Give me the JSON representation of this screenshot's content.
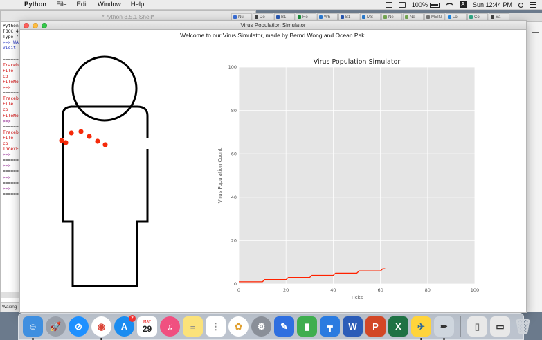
{
  "menubar": {
    "app_name": "Python",
    "menus": [
      "File",
      "Edit",
      "Window",
      "Help"
    ],
    "battery": "100%",
    "clock": "Sun 12:44 PM",
    "input_badge": "A"
  },
  "shell": {
    "title": "*Python 3.5.1 Shell*",
    "lines": [
      {
        "text": "Python",
        "color": "k"
      },
      {
        "text": "[GCC 4",
        "color": "k"
      },
      {
        "text": "Type \"",
        "color": "k"
      },
      {
        "text": ">>> WA",
        "color": "b"
      },
      {
        "text": "Visit",
        "color": "b"
      },
      {
        "text": "",
        "color": "k"
      },
      {
        "text": "======",
        "color": "k"
      },
      {
        "text": "Traceb",
        "color": "r"
      },
      {
        "text": "  File",
        "color": "r"
      },
      {
        "text": "    co",
        "color": "r"
      },
      {
        "text": "FileNo",
        "color": "r"
      },
      {
        "text": ">>>",
        "color": "r"
      },
      {
        "text": "======",
        "color": "k"
      },
      {
        "text": "Traceb",
        "color": "r"
      },
      {
        "text": "  File",
        "color": "r"
      },
      {
        "text": "    co",
        "color": "r"
      },
      {
        "text": "FileNo",
        "color": "r"
      },
      {
        "text": ">>>",
        "color": "p"
      },
      {
        "text": "======",
        "color": "k"
      },
      {
        "text": "Traceb",
        "color": "r"
      },
      {
        "text": "  File",
        "color": "r"
      },
      {
        "text": "    co",
        "color": "r"
      },
      {
        "text": "IndexE",
        "color": "r"
      },
      {
        "text": ">>>",
        "color": "p"
      },
      {
        "text": "======",
        "color": "k"
      },
      {
        "text": ">>>",
        "color": "p"
      },
      {
        "text": "======",
        "color": "k"
      },
      {
        "text": ">>>",
        "color": "p"
      },
      {
        "text": "======",
        "color": "k"
      },
      {
        "text": ">>>",
        "color": "p"
      },
      {
        "text": "======",
        "color": "k"
      }
    ],
    "status": "Waiting"
  },
  "browser_tabs": [
    "Nu",
    "Do",
    "B1",
    "Ho",
    "Wh",
    "B1",
    "MS",
    "Ne",
    "Ne",
    "MEIN",
    "Lo",
    "Co",
    "Sa"
  ],
  "window": {
    "title": "Virus Population Simulator",
    "welcome": "Welcome to our Virus Simulator, made by Bernd Wong and Ocean Pak.",
    "virus_color": "#f52a0a"
  },
  "chart_data": {
    "type": "line",
    "title": "Virus Population Simulator",
    "xlabel": "Ticks",
    "ylabel": "Virus Population Count",
    "xlim": [
      0,
      100
    ],
    "ylim": [
      0,
      100
    ],
    "xticks": [
      0,
      20,
      40,
      60,
      80,
      100
    ],
    "yticks": [
      0,
      20,
      40,
      60,
      80,
      100
    ],
    "grid": true,
    "background": "#e5e5e5",
    "series": [
      {
        "color": "#ff2200",
        "x": [
          0,
          10,
          11,
          20,
          21,
          30,
          31,
          40,
          41,
          50,
          51,
          60,
          61,
          62
        ],
        "y": [
          1,
          1,
          2,
          2,
          3,
          3,
          4,
          4,
          5,
          5,
          6,
          6,
          7,
          7
        ]
      }
    ]
  },
  "dock": {
    "calendar_month": "MAY",
    "calendar_day": "29",
    "appstore_badge": "2"
  }
}
